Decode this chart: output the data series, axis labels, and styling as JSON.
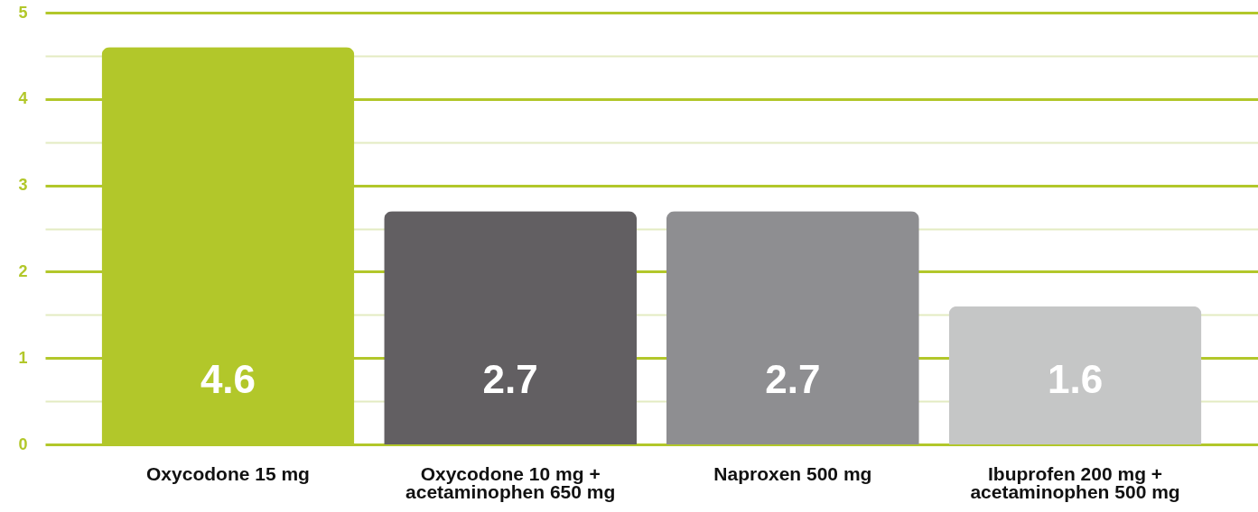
{
  "chart_data": {
    "type": "bar",
    "categories": [
      "Oxycodone 15 mg",
      "Oxycodone 10 mg + acetaminophen 650 mg",
      "Naproxen 500 mg",
      "Ibuprofen 200 mg + acetaminophen 500 mg"
    ],
    "values": [
      4.6,
      2.7,
      2.7,
      1.6
    ],
    "colors": [
      "#b2c72a",
      "#625f62",
      "#8e8e91",
      "#c5c6c6"
    ],
    "ylim": [
      0,
      5
    ],
    "yticks": [
      0,
      {
        "value": 0.5,
        "label": null
      },
      1,
      {
        "value": 1.5,
        "label": null
      },
      2,
      {
        "value": 2.5,
        "label": null
      },
      3,
      {
        "value": 3.5,
        "label": null
      },
      4,
      {
        "value": 4.5,
        "label": null
      },
      5
    ],
    "grid": "y",
    "data_labels": true
  }
}
